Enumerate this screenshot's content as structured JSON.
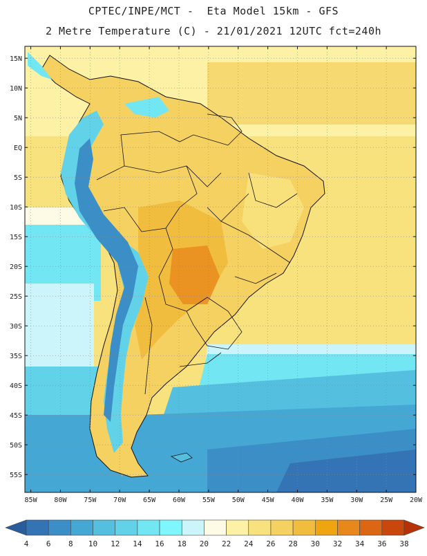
{
  "header": {
    "line1": "CPTEC/INPE/MCT -  Eta Model 15km - GFS",
    "line2": "2 Metre Temperature (C) - 21/01/2021 12UTC fct=240h"
  },
  "map": {
    "lon_min": -86,
    "lon_max": -20,
    "lat_min": -58,
    "lat_max": 17,
    "lat_ticks": [
      {
        "label": "15N",
        "value": 15
      },
      {
        "label": "10N",
        "value": 10
      },
      {
        "label": "5N",
        "value": 5
      },
      {
        "label": "EQ",
        "value": 0
      },
      {
        "label": "5S",
        "value": -5
      },
      {
        "label": "10S",
        "value": -10
      },
      {
        "label": "15S",
        "value": -15
      },
      {
        "label": "20S",
        "value": -20
      },
      {
        "label": "25S",
        "value": -25
      },
      {
        "label": "30S",
        "value": -30
      },
      {
        "label": "35S",
        "value": -35
      },
      {
        "label": "40S",
        "value": -40
      },
      {
        "label": "45S",
        "value": -45
      },
      {
        "label": "50S",
        "value": -50
      },
      {
        "label": "55S",
        "value": -55
      }
    ],
    "lon_ticks": [
      {
        "label": "85W",
        "value": -85
      },
      {
        "label": "80W",
        "value": -80
      },
      {
        "label": "75W",
        "value": -75
      },
      {
        "label": "70W",
        "value": -70
      },
      {
        "label": "65W",
        "value": -65
      },
      {
        "label": "60W",
        "value": -60
      },
      {
        "label": "55W",
        "value": -55
      },
      {
        "label": "50W",
        "value": -50
      },
      {
        "label": "45W",
        "value": -45
      },
      {
        "label": "40W",
        "value": -40
      },
      {
        "label": "35W",
        "value": -35
      },
      {
        "label": "30W",
        "value": -30
      },
      {
        "label": "25W",
        "value": -25
      },
      {
        "label": "20W",
        "value": -20
      }
    ]
  },
  "legend": {
    "labels": [
      "4",
      "6",
      "8",
      "10",
      "12",
      "14",
      "16",
      "18",
      "20",
      "22",
      "24",
      "26",
      "28",
      "30",
      "32",
      "34",
      "36",
      "38"
    ],
    "colors": [
      "#2a5c9c",
      "#3574b4",
      "#3b8ec6",
      "#45a7d4",
      "#55bfdf",
      "#62d2e8",
      "#72e6f2",
      "#7ff6fc",
      "#cbf5fb",
      "#fdfbe6",
      "#fcf1a4",
      "#f8e27d",
      "#f4d160",
      "#f0bd3e",
      "#efa512",
      "#e8871b",
      "#db6714",
      "#c9470c",
      "#b53207"
    ]
  }
}
